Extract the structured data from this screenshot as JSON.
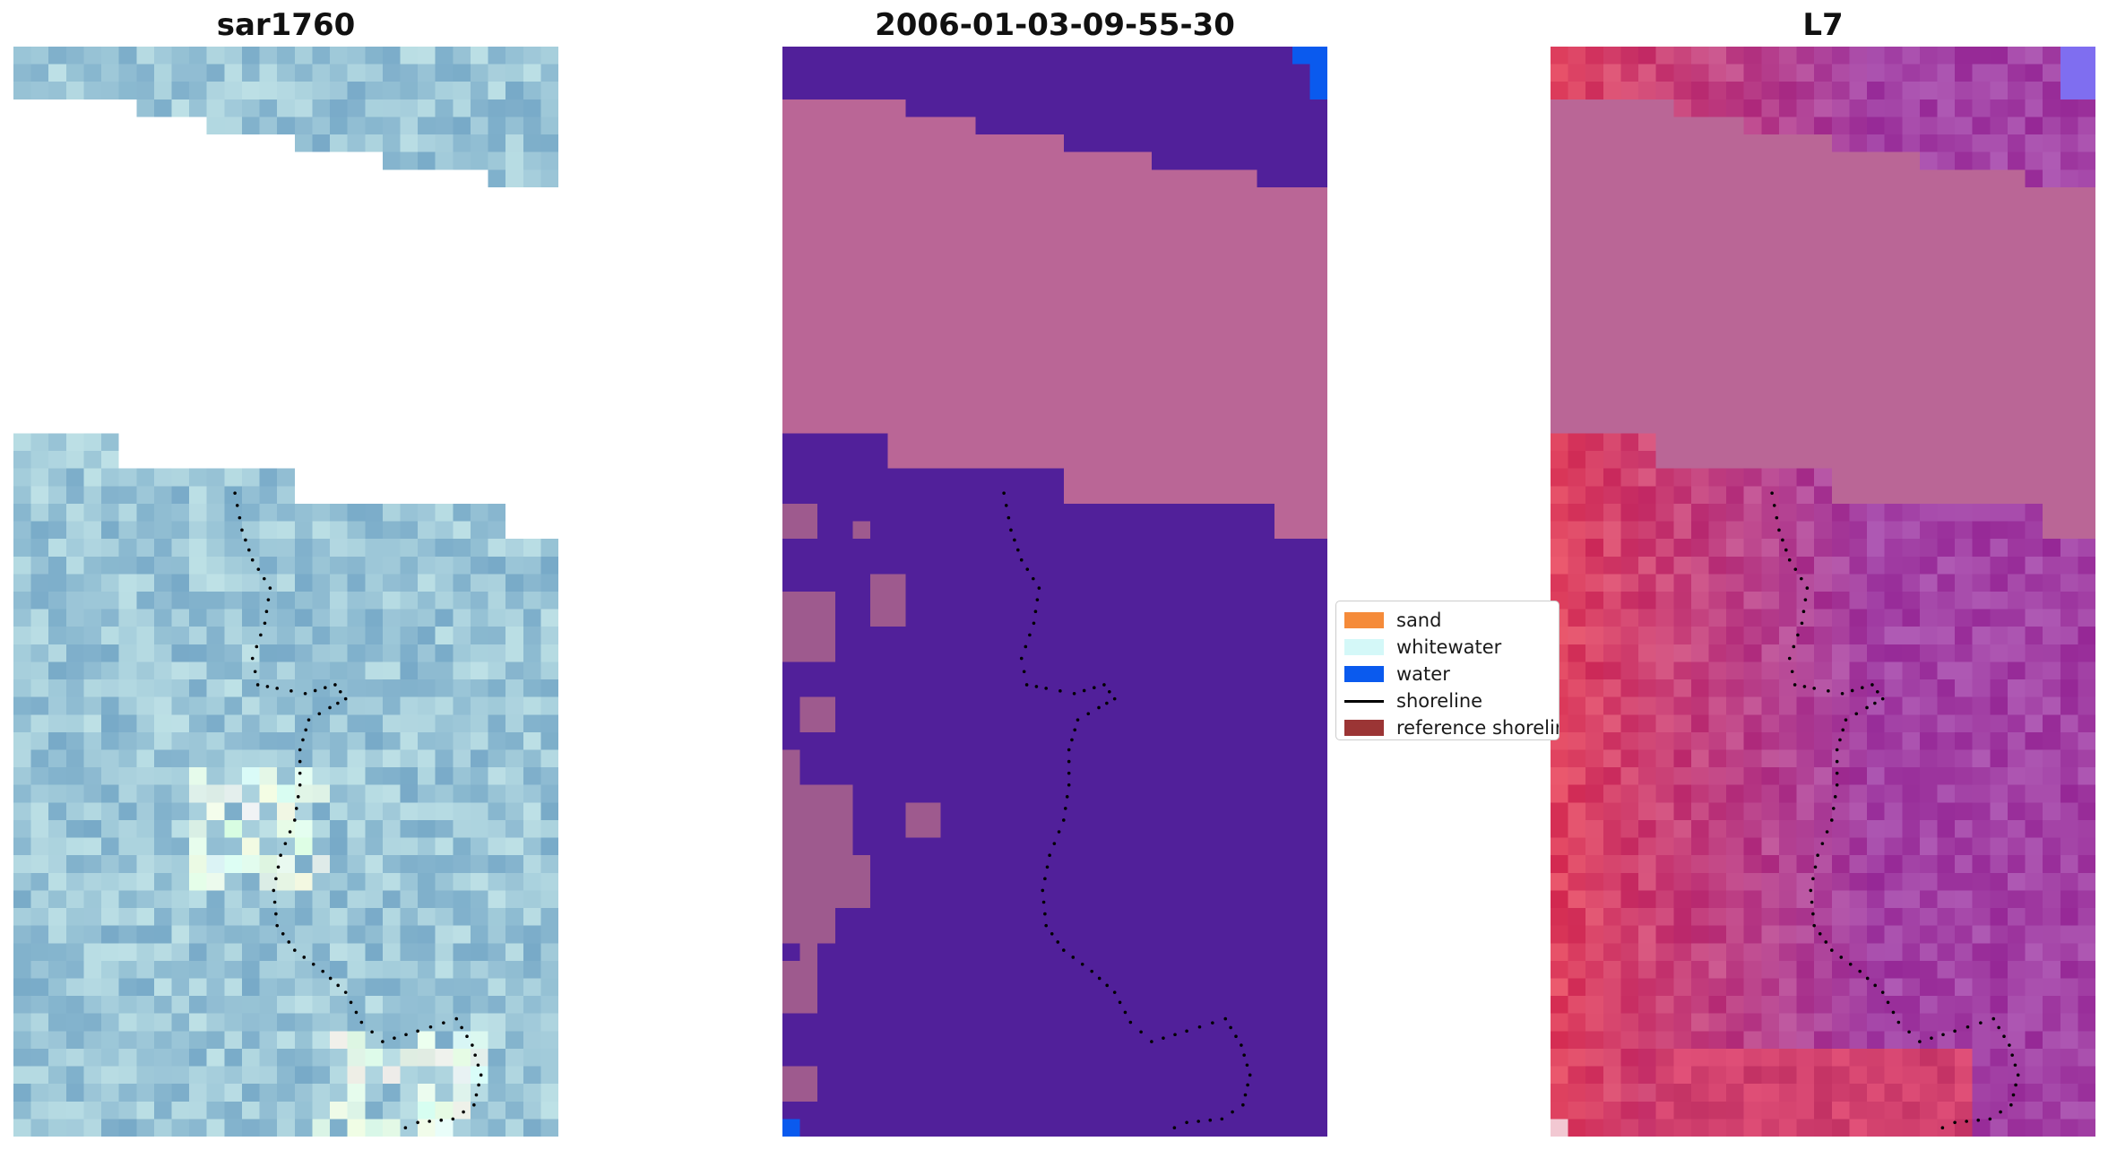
{
  "figure": {
    "panels": [
      {
        "title": "sar1760"
      },
      {
        "title": "2006-01-03-09-55-30"
      },
      {
        "title": "L7"
      }
    ]
  },
  "legend": {
    "items": [
      {
        "label": "sand",
        "color": "#F58B3A",
        "kind": "swatch"
      },
      {
        "label": "whitewater",
        "color": "#D4F8F8",
        "kind": "swatch"
      },
      {
        "label": "water",
        "color": "#0A5AEE",
        "kind": "swatch"
      },
      {
        "label": "shoreline",
        "color": "#000000",
        "kind": "line"
      },
      {
        "label": "reference shoreline",
        "color": "#9B3535",
        "kind": "swatch"
      }
    ]
  },
  "colors": {
    "masked_pink": "#BA6696",
    "classified_purple": "#51209A",
    "water_blue": "#0A5AEE"
  }
}
